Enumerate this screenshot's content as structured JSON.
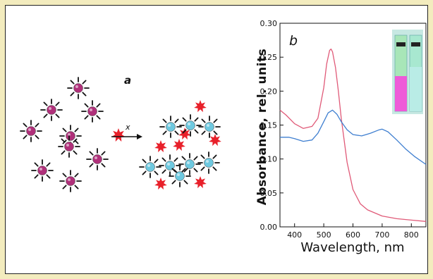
{
  "panel_a": {
    "label": "a",
    "reagent_label": "x",
    "colors": {
      "nanoparticle_before": "#b0307a",
      "nanoparticle_after": "#6ec9e0",
      "analyte": "#e8202a"
    }
  },
  "chart_data": {
    "type": "line",
    "panel_label": "b",
    "xlabel": "Wavelength, nm",
    "ylabel": "Absorbance, rel. units",
    "xlim": [
      350,
      850
    ],
    "ylim": [
      0.0,
      0.3
    ],
    "xticks": [
      "400",
      "500",
      "600",
      "700",
      "800"
    ],
    "yticks": [
      "0.00",
      "0.05",
      "0.10",
      "0.15",
      "0.20",
      "0.25",
      "0.30"
    ],
    "grid": false,
    "legend": "none",
    "series": [
      {
        "color": "#e05a78",
        "x": [
          350,
          370,
          400,
          430,
          460,
          480,
          500,
          510,
          520,
          525,
          530,
          540,
          550,
          560,
          580,
          600,
          625,
          650,
          700,
          750,
          800,
          850
        ],
        "y": [
          0.172,
          0.165,
          0.152,
          0.145,
          0.148,
          0.16,
          0.205,
          0.24,
          0.26,
          0.262,
          0.258,
          0.235,
          0.2,
          0.16,
          0.095,
          0.055,
          0.034,
          0.025,
          0.016,
          0.012,
          0.01,
          0.008
        ]
      },
      {
        "color": "#3f7fd0",
        "x": [
          350,
          380,
          400,
          430,
          460,
          480,
          500,
          515,
          530,
          545,
          560,
          580,
          600,
          630,
          660,
          690,
          700,
          720,
          750,
          780,
          810,
          850
        ],
        "y": [
          0.132,
          0.132,
          0.13,
          0.126,
          0.128,
          0.138,
          0.155,
          0.168,
          0.172,
          0.166,
          0.155,
          0.143,
          0.136,
          0.134,
          0.138,
          0.143,
          0.144,
          0.14,
          0.128,
          0.115,
          0.104,
          0.092
        ]
      }
    ]
  }
}
